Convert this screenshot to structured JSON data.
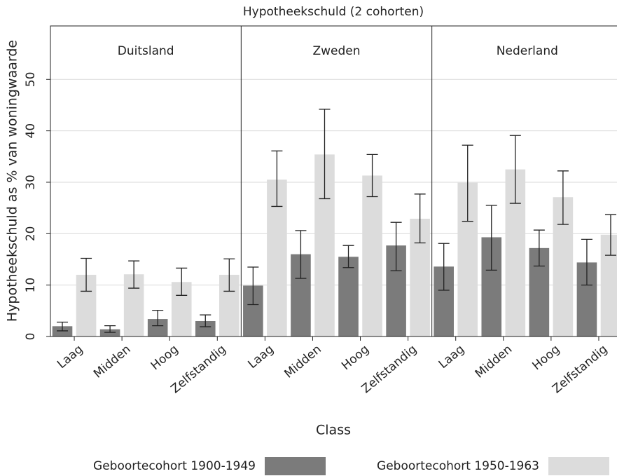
{
  "chart_data": {
    "type": "bar",
    "title": "Hypotheekschuld (2 cohorten)",
    "x_label": "Class",
    "y_label": "Hypotheekschuld as % van woningwaarde",
    "groups": [
      "Duitsland",
      "Zweden",
      "Nederland"
    ],
    "categories": [
      "Laag",
      "Midden",
      "Hoog",
      "Zelfstandig",
      "Laag",
      "Midden",
      "Hoog",
      "Zelfstandig",
      "Laag",
      "Midden",
      "Hoog",
      "Zelfstandig"
    ],
    "series": [
      {
        "name": "Geboortecohort 1900-1949",
        "color": "#7b7b7b",
        "values": [
          2,
          1.4,
          3.4,
          3,
          9.9,
          16,
          15.5,
          17.7,
          13.6,
          19.3,
          17.2,
          14.4
        ],
        "lower": [
          1.1,
          0.8,
          2.1,
          1.9,
          6.2,
          11.3,
          13.4,
          12.8,
          9,
          12.9,
          13.7,
          10
        ],
        "upper": [
          2.8,
          2.1,
          5.1,
          4.2,
          13.5,
          20.6,
          17.7,
          22.2,
          18.1,
          25.5,
          20.7,
          18.9
        ]
      },
      {
        "name": "Geboortecohort 1950-1963",
        "color": "#dcdcdc",
        "values": [
          12,
          12.1,
          10.6,
          12,
          30.5,
          35.4,
          31.3,
          22.9,
          29.9,
          32.5,
          27.1,
          19.8
        ],
        "lower": [
          8.8,
          9.4,
          8,
          8.8,
          25.3,
          26.8,
          27.2,
          18.2,
          22.4,
          25.9,
          21.8,
          15.8
        ],
        "upper": [
          15.2,
          14.7,
          13.3,
          15.1,
          36.1,
          44.2,
          35.4,
          27.7,
          37.2,
          39.1,
          32.2,
          23.7
        ]
      }
    ],
    "ylim": [
      0,
      60.4
    ],
    "yticks": [
      0,
      10,
      20,
      30,
      40,
      50
    ],
    "grid": true
  }
}
